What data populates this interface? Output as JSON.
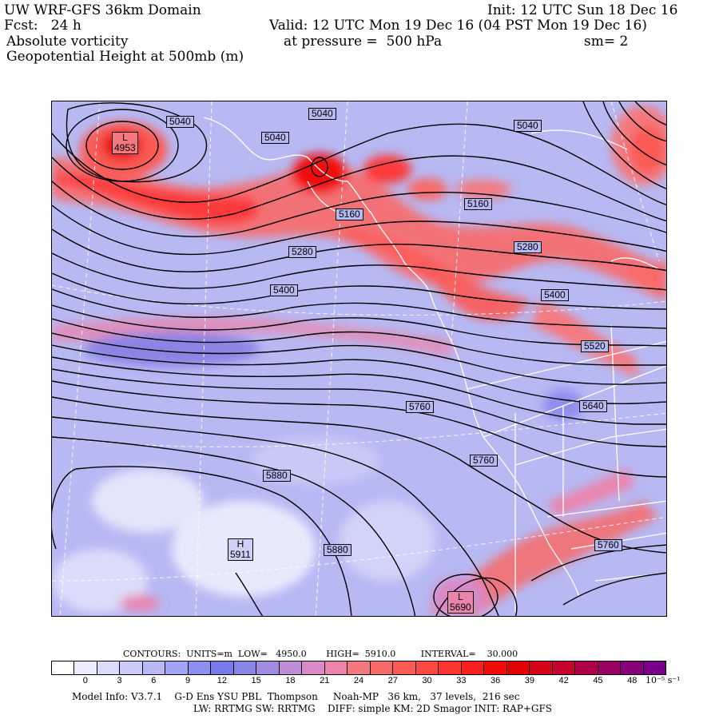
{
  "header": {
    "title": "UW WRF-GFS 36km Domain",
    "init": "Init: 12 UTC Sun 18 Dec 16",
    "fcst": "Fcst:   24 h",
    "valid": "Valid: 12 UTC Mon 19 Dec 16 (04 PST Mon 19 Dec 16)",
    "field1": "Absolute vorticity",
    "pressure": "at pressure =  500 hPa",
    "smooth": "sm= 2",
    "field2": "Geopotential Height at 500mb (m)"
  },
  "map": {
    "contour_labels": [
      "5040",
      "5040",
      "5040",
      "5040",
      "5160",
      "5160",
      "5280",
      "5280",
      "5400",
      "5400",
      "5520",
      "5640",
      "5760",
      "5760",
      "5760",
      "5880",
      "5880"
    ],
    "centers": [
      {
        "type": "L",
        "value": "4953"
      },
      {
        "type": "H",
        "value": "5911"
      },
      {
        "type": "L",
        "value": "5690"
      }
    ]
  },
  "footer": {
    "contours": "CONTOURS:  UNITS=m  LOW=   4950.0       HIGH=  5910.0         INTERVAL=    30.000",
    "colorbar_ticks": [
      "0",
      "3",
      "6",
      "9",
      "12",
      "15",
      "18",
      "21",
      "24",
      "27",
      "30",
      "33",
      "36",
      "39",
      "42",
      "45",
      "48"
    ],
    "units": "10⁻⁵ s⁻¹",
    "model_info": "Model Info: V3.7.1    G-D Ens YSU PBL  Thompson     Noah-MP   36 km,   37 levels,  216 sec",
    "model_info2": "LW: RRTMG SW: RRTMG    DIFF: simple KM: 2D Smagor INIT: RAP+GFS"
  },
  "colors": {
    "colorbar": [
      "#ffffff",
      "#ececfd",
      "#dcdcfa",
      "#cbcbf8",
      "#b8b9f4",
      "#a3a4f1",
      "#8e8fee",
      "#7879eb",
      "#8a84e4",
      "#a18be0",
      "#bf8cd6",
      "#d889c8",
      "#ea84ad",
      "#f4797f",
      "#f86a68",
      "#fb5a55",
      "#fd4943",
      "#fe3531",
      "#fb2020",
      "#f20d0d",
      "#e20404",
      "#d40318",
      "#c4032f",
      "#b00148",
      "#9a0162",
      "#86017a",
      "#760088"
    ]
  }
}
